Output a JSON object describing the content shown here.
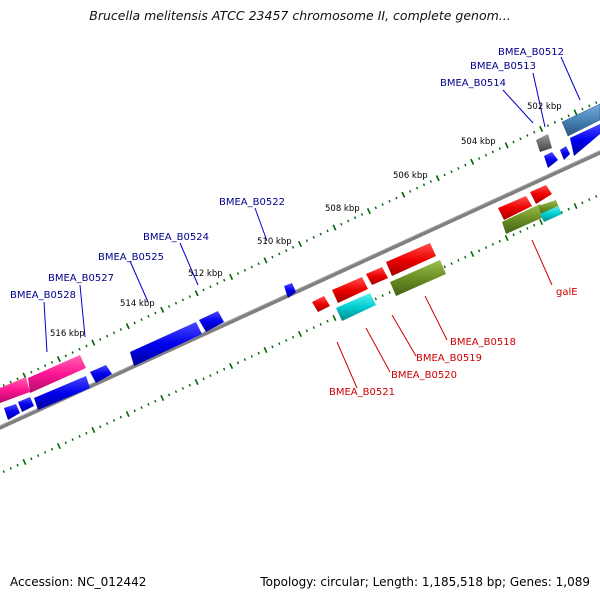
{
  "title": "Brucella melitensis ATCC 23457 chromosome II, complete genom...",
  "footer": {
    "accession": "Accession: NC_012442",
    "summary": "Topology: circular; Length: 1,185,518 bp; Genes: 1,089"
  },
  "colors": {
    "blue": "#0000ee",
    "red": "#ee0000",
    "pink": "#ff1493",
    "cyan": "#00ced1",
    "olive": "#6b8e23",
    "steelblue": "#4682b4",
    "gray": "#666666",
    "label_blue": "#00008b",
    "label_red": "#cc0000",
    "backbone": "#808080",
    "tick_green": "#006400"
  },
  "tick_labels": [
    "502 kbp",
    "504 kbp",
    "506 kbp",
    "508 kbp",
    "510 kbp",
    "512 kbp",
    "514 kbp",
    "516 kbp"
  ],
  "gene_labels_blue": [
    "BMEA_B0512",
    "BMEA_B0513",
    "BMEA_B0514",
    "BMEA_B0522",
    "BMEA_B0524",
    "BMEA_B0525",
    "BMEA_B0527",
    "BMEA_B0528"
  ],
  "gene_labels_red": [
    "galE",
    "BMEA_B0518",
    "BMEA_B0519",
    "BMEA_B0520",
    "BMEA_B0521"
  ]
}
